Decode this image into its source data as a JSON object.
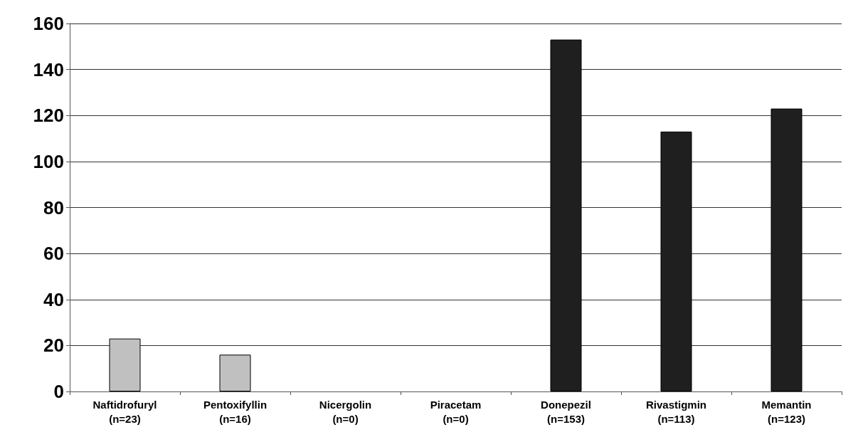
{
  "chart_data": {
    "type": "bar",
    "categories": [
      "Naftidrofuryl\n(n=23)",
      "Pentoxifyllin\n(n=16)",
      "Nicergolin\n(n=0)",
      "Piracetam\n(n=0)",
      "Donepezil\n(n=153)",
      "Rivastigmin\n(n=113)",
      "Memantin\n(n=123)"
    ],
    "values": [
      23,
      16,
      0,
      0,
      153,
      113,
      123
    ],
    "colors": [
      "#c0c0c0",
      "#c0c0c0",
      "#c0c0c0",
      "#c0c0c0",
      "#1f1f1f",
      "#1f1f1f",
      "#1f1f1f"
    ],
    "ylim": [
      0,
      160
    ],
    "yticks": [
      0,
      20,
      40,
      60,
      80,
      100,
      120,
      140,
      160
    ],
    "grid": "y"
  }
}
